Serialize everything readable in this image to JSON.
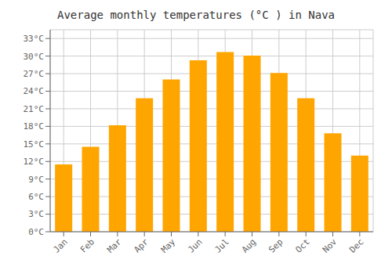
{
  "chart_data": {
    "type": "bar",
    "title": "Average monthly temperatures (°C ) in Nava",
    "categories": [
      "Jan",
      "Feb",
      "Mar",
      "Apr",
      "May",
      "Jun",
      "Jul",
      "Aug",
      "Sep",
      "Oct",
      "Nov",
      "Dec"
    ],
    "values": [
      11.5,
      14.5,
      18.2,
      22.8,
      26.0,
      29.3,
      30.7,
      30.1,
      27.1,
      22.8,
      16.8,
      13.0
    ],
    "color": "#FFA500",
    "ylim": [
      0,
      34.5
    ],
    "yticks": [
      {
        "value": 0,
        "label": "0°C"
      },
      {
        "value": 3,
        "label": "3°C"
      },
      {
        "value": 6,
        "label": "6°C"
      },
      {
        "value": 9,
        "label": "9°C"
      },
      {
        "value": 12,
        "label": "12°C"
      },
      {
        "value": 15,
        "label": "15°C"
      },
      {
        "value": 18,
        "label": "18°C"
      },
      {
        "value": 21,
        "label": "21°C"
      },
      {
        "value": 24,
        "label": "24°C"
      },
      {
        "value": 27,
        "label": "27°C"
      },
      {
        "value": 30,
        "label": "30°C"
      },
      {
        "value": 33,
        "label": "33°C"
      }
    ],
    "grid": true
  }
}
